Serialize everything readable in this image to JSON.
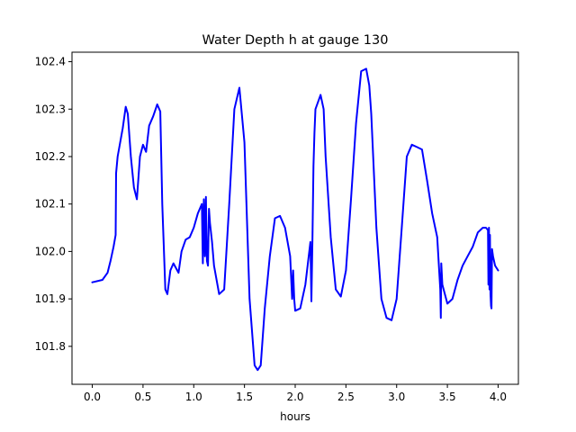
{
  "chart_data": {
    "type": "line",
    "title": "Water Depth h at gauge 130",
    "xlabel": "hours",
    "ylabel": "",
    "xlim": [
      -0.2,
      4.2
    ],
    "ylim": [
      101.72,
      102.42
    ],
    "xticks": [
      0.0,
      0.5,
      1.0,
      1.5,
      2.0,
      2.5,
      3.0,
      3.5,
      4.0
    ],
    "xtick_labels": [
      "0.0",
      "0.5",
      "1.0",
      "1.5",
      "2.0",
      "2.5",
      "3.0",
      "3.5",
      "4.0"
    ],
    "yticks": [
      101.8,
      101.9,
      102.0,
      102.1,
      102.2,
      102.3,
      102.4
    ],
    "ytick_labels": [
      "101.8",
      "101.9",
      "102.0",
      "102.1",
      "102.2",
      "102.3",
      "102.4"
    ],
    "grid": false,
    "series": [
      {
        "color": "#0000ff",
        "x": [
          0.0,
          0.1,
          0.15,
          0.18,
          0.21,
          0.23,
          0.235,
          0.25,
          0.3,
          0.33,
          0.35,
          0.38,
          0.41,
          0.44,
          0.47,
          0.5,
          0.53,
          0.56,
          0.6,
          0.64,
          0.67,
          0.69,
          0.72,
          0.74,
          0.77,
          0.8,
          0.85,
          0.88,
          0.92,
          0.96,
          1.0,
          1.04,
          1.08,
          1.09,
          1.1,
          1.11,
          1.12,
          1.13,
          1.14,
          1.15,
          1.16,
          1.18,
          1.2,
          1.25,
          1.3,
          1.35,
          1.4,
          1.45,
          1.5,
          1.55,
          1.6,
          1.63,
          1.66,
          1.7,
          1.75,
          1.8,
          1.85,
          1.9,
          1.95,
          1.97,
          1.98,
          1.99,
          2.0,
          2.05,
          2.1,
          2.15,
          2.16,
          2.17,
          2.18,
          2.19,
          2.2,
          2.25,
          2.28,
          2.3,
          2.35,
          2.4,
          2.45,
          2.5,
          2.55,
          2.6,
          2.65,
          2.7,
          2.73,
          2.75,
          2.8,
          2.85,
          2.9,
          2.95,
          3.0,
          3.05,
          3.1,
          3.15,
          3.2,
          3.25,
          3.3,
          3.35,
          3.4,
          3.43,
          3.435,
          3.44,
          3.45,
          3.5,
          3.55,
          3.6,
          3.65,
          3.7,
          3.75,
          3.8,
          3.85,
          3.88,
          3.9,
          3.905,
          3.91,
          3.915,
          3.92,
          3.925,
          3.93,
          3.935,
          3.94,
          3.95,
          3.97,
          4.0
        ],
        "y": [
          101.935,
          101.94,
          101.955,
          101.98,
          102.01,
          102.035,
          102.165,
          102.2,
          102.26,
          102.305,
          102.29,
          102.2,
          102.135,
          102.11,
          102.2,
          102.225,
          102.21,
          102.265,
          102.285,
          102.31,
          102.295,
          102.1,
          101.92,
          101.91,
          101.96,
          101.975,
          101.955,
          102.0,
          102.025,
          102.03,
          102.05,
          102.08,
          102.1,
          101.975,
          102.11,
          101.99,
          102.115,
          101.98,
          101.97,
          102.09,
          102.06,
          102.02,
          101.97,
          101.91,
          101.92,
          102.1,
          102.3,
          102.345,
          102.23,
          101.9,
          101.76,
          101.75,
          101.76,
          101.88,
          101.99,
          102.07,
          102.075,
          102.05,
          101.99,
          101.9,
          101.96,
          101.9,
          101.875,
          101.88,
          101.93,
          102.02,
          101.895,
          102.03,
          102.18,
          102.25,
          102.3,
          102.33,
          102.3,
          102.2,
          102.03,
          101.92,
          101.905,
          101.96,
          102.11,
          102.27,
          102.38,
          102.385,
          102.35,
          102.29,
          102.05,
          101.9,
          101.86,
          101.855,
          101.9,
          102.05,
          102.2,
          102.225,
          102.22,
          102.215,
          102.15,
          102.08,
          102.03,
          101.92,
          101.86,
          101.975,
          101.93,
          101.89,
          101.9,
          101.94,
          101.97,
          101.99,
          102.01,
          102.04,
          102.05,
          102.05,
          102.045,
          101.93,
          102.05,
          101.92,
          102.035,
          101.91,
          101.885,
          101.88,
          102.005,
          101.99,
          101.97,
          101.96
        ]
      }
    ]
  }
}
